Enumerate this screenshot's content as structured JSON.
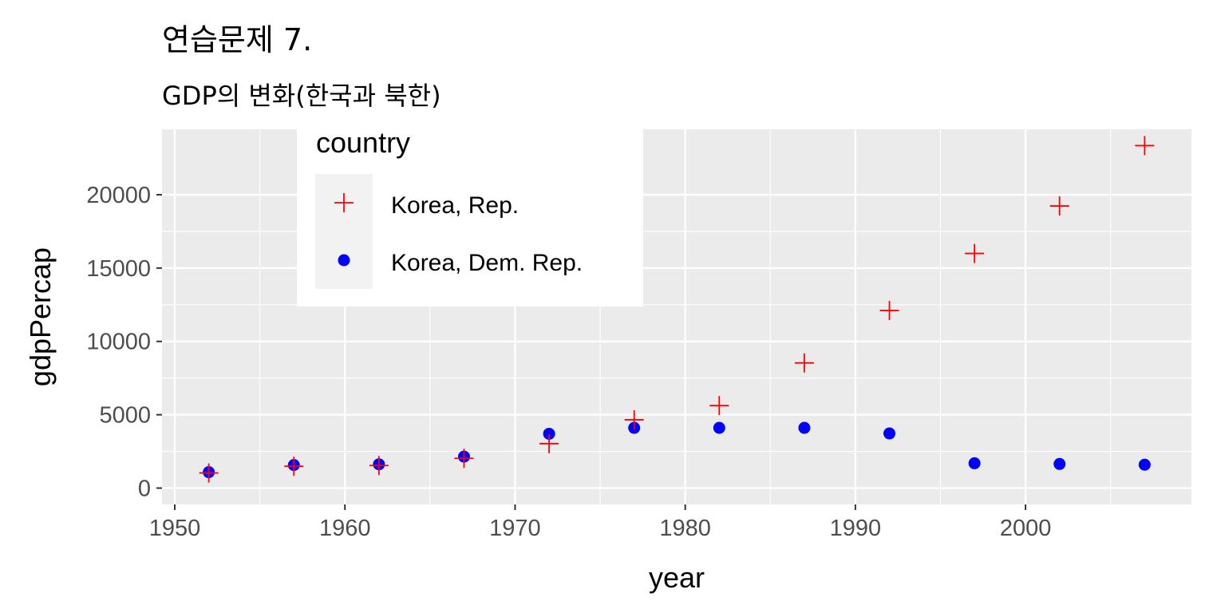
{
  "chart_data": {
    "type": "scatter",
    "title": "연습문제 7.",
    "subtitle": "GDP의 변화(한국과 북한)",
    "xlabel": "year",
    "ylabel": "gdpPercap",
    "xlim": [
      1950,
      2010
    ],
    "ylim": [
      0,
      24000
    ],
    "x_ticks": [
      1950,
      1960,
      1970,
      1980,
      1990,
      2000
    ],
    "x_minor_ticks": [
      1955,
      1965,
      1975,
      1985,
      1995,
      2005
    ],
    "y_ticks": [
      0,
      5000,
      10000,
      15000,
      20000
    ],
    "y_minor_ticks": [
      2500,
      7500,
      12500,
      17500
    ],
    "grid": true,
    "legend": {
      "title": "country",
      "placement": "top-left inside"
    },
    "colors": {
      "panel_bg": "#EBEBEB",
      "grid": "#FFFFFF",
      "korea_rep": "#FF0000",
      "korea_dem_rep": "#0000FF",
      "text": "#000000",
      "tick_text": "#4D4D4D"
    },
    "series": [
      {
        "name": "Korea, Rep.",
        "marker": "plus",
        "color": "#FF0000",
        "x": [
          1952,
          1957,
          1962,
          1967,
          1972,
          1977,
          1982,
          1987,
          1992,
          1997,
          2002,
          2007
        ],
        "y": [
          1031,
          1488,
          1536,
          2029,
          3031,
          4657,
          5623,
          8533,
          12104,
          15994,
          19234,
          23348
        ]
      },
      {
        "name": "Korea, Dem. Rep.",
        "marker": "circle",
        "color": "#0000FF",
        "x": [
          1952,
          1957,
          1962,
          1967,
          1972,
          1977,
          1982,
          1987,
          1992,
          1997,
          2002,
          2007
        ],
        "y": [
          1088,
          1572,
          1622,
          2144,
          3702,
          4106,
          4107,
          4106,
          3726,
          1691,
          1646,
          1593
        ]
      }
    ]
  }
}
